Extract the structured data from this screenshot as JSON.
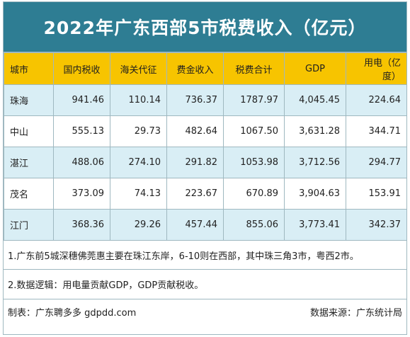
{
  "title": "2022年广东西部5市税费收入（亿元）",
  "columns": [
    "城市",
    "国内税收",
    "海关代征",
    "费金收入",
    "税费合计",
    "GDP",
    "用电（亿度）"
  ],
  "rows": [
    [
      "珠海",
      "941.46",
      "110.14",
      "736.37",
      "1787.97",
      "4,045.45",
      "224.64"
    ],
    [
      "中山",
      "555.13",
      "29.73",
      "482.64",
      "1067.50",
      "3,631.28",
      "344.71"
    ],
    [
      "湛江",
      "488.06",
      "274.10",
      "291.82",
      "1053.98",
      "3,712.56",
      "294.77"
    ],
    [
      "茂名",
      "373.09",
      "74.13",
      "223.67",
      "670.89",
      "3,904.63",
      "153.91"
    ],
    [
      "江门",
      "368.36",
      "29.26",
      "457.44",
      "855.06",
      "3,773.41",
      "342.37"
    ]
  ],
  "notes": [
    "1.广东前5城深穗佛莞惠主要在珠江东岸，6-10则在西部，其中珠三角3市，粤西2市。",
    "2.数据逻辑：用电量贡献GDP，GDP贡献税收。"
  ],
  "footer": {
    "maker": "制表：广东聘多多 gdpdd.com",
    "source": "数据来源：广东统计局"
  },
  "colors": {
    "title_bg": "#2e7d93",
    "header_bg": "#f7c400",
    "row_alt_bg": "#d9eef5"
  }
}
